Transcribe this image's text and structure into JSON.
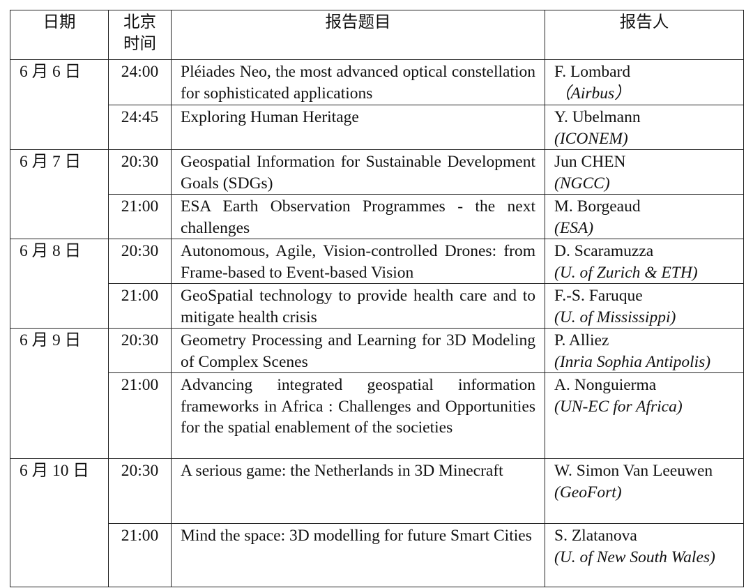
{
  "header": {
    "date": "日期",
    "time": "北京\n时间",
    "title": "报告题目",
    "speaker": "报告人"
  },
  "days": [
    {
      "date": "6 月 6 日",
      "talks": [
        {
          "time": "24:00",
          "title": "Pléiades Neo, the most advanced optical constellation for sophisticated applications",
          "speaker": "F. Lombard",
          "affiliation": "（Airbus）"
        },
        {
          "time": "24:45",
          "title": "Exploring Human Heritage",
          "speaker": "Y. Ubelmann",
          "affiliation": "(ICONEM)"
        }
      ]
    },
    {
      "date": "6 月 7 日",
      "talks": [
        {
          "time": "20:30",
          "title": "Geospatial Information for Sustainable Development Goals (SDGs)",
          "speaker": "Jun CHEN",
          "affiliation": "(NGCC)"
        },
        {
          "time": "21:00",
          "title": "ESA Earth Observation Programmes - the next challenges",
          "speaker": "M. Borgeaud",
          "affiliation": "(ESA)"
        }
      ]
    },
    {
      "date": "6 月 8 日",
      "talks": [
        {
          "time": "20:30",
          "title": "Autonomous, Agile, Vision-controlled Drones: from Frame-based to Event-based Vision",
          "speaker": "D. Scaramuzza",
          "affiliation": "(U. of Zurich & ETH)"
        },
        {
          "time": "21:00",
          "title": "GeoSpatial technology to provide health care and to mitigate health crisis",
          "speaker": "F.-S. Faruque",
          "affiliation": "(U. of Mississippi)"
        }
      ]
    },
    {
      "date": "6 月 9 日",
      "talks": [
        {
          "time": "20:30",
          "title": "Geometry Processing and Learning for 3D Modeling of Complex Scenes",
          "speaker": "P. Alliez",
          "affiliation": "(Inria Sophia Antipolis)"
        },
        {
          "time": "21:00",
          "title": "Advancing integrated geospatial information frameworks in Africa : Challenges and Opportunities for the spatial enablement of the societies",
          "speaker": "A. Nonguierma",
          "affiliation": "(UN-EC for Africa)"
        }
      ]
    },
    {
      "date": "6 月 10 日",
      "talks": [
        {
          "time": "20:30",
          "title": "A serious game: the Netherlands in 3D Minecraft",
          "speaker": "W. Simon Van Leeuwen",
          "affiliation": "(GeoFort)"
        },
        {
          "time": "21:00",
          "title": "Mind the space: 3D modelling for future Smart Cities",
          "speaker": "S. Zlatanova",
          "affiliation": "(U. of New South Wales)"
        }
      ]
    }
  ]
}
